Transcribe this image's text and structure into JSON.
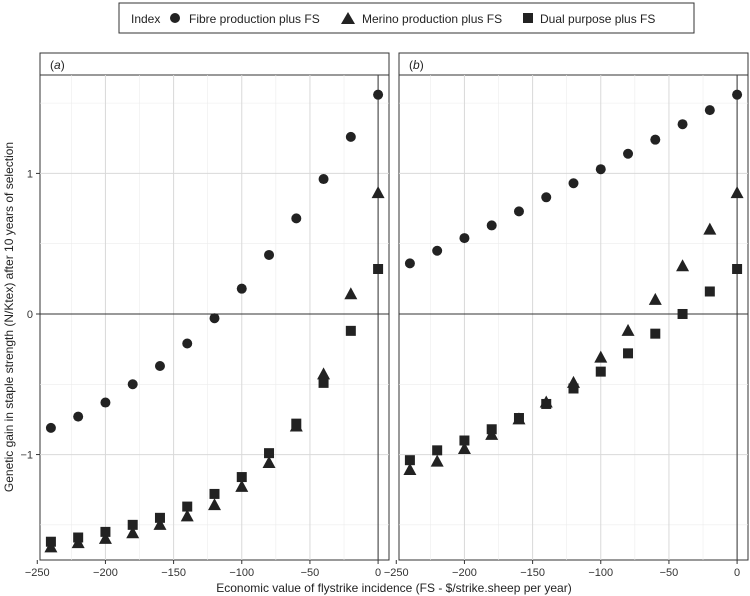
{
  "chart_data": {
    "type": "scatter",
    "legend": {
      "title": "Index",
      "position": "top",
      "entries": [
        {
          "name": "Fibre production plus FS",
          "shape": "circle"
        },
        {
          "name": "Merino production plus FS",
          "shape": "triangle"
        },
        {
          "name": "Dual purpose plus FS",
          "shape": "square"
        }
      ]
    },
    "xlabel": "Economic value of flystrike incidence (FS - $/strike.sheep per year)",
    "ylabel": "Genetic gain in staple strength (N/Ktex) after 10 years of selection",
    "xlim": [
      -248,
      8
    ],
    "ylim": [
      -1.75,
      1.7
    ],
    "xticks": [
      -250,
      -200,
      -150,
      -100,
      -50,
      0
    ],
    "yticks": [
      -1,
      0,
      1
    ],
    "grid": true,
    "reference_lines": {
      "x": 0,
      "y": 0
    },
    "marker_color": "#222222",
    "panels": [
      {
        "label_prefix": "(",
        "label_letter": "a",
        "label_suffix": ")",
        "x": [
          -240,
          -220,
          -200,
          -180,
          -160,
          -140,
          -120,
          -100,
          -80,
          -60,
          -40,
          -20,
          0
        ],
        "series": [
          {
            "name": "Fibre production plus FS",
            "shape": "circle",
            "values": [
              -0.81,
              -0.73,
              -0.63,
              -0.5,
              -0.37,
              -0.21,
              -0.03,
              0.18,
              0.42,
              0.68,
              0.96,
              1.26,
              1.56
            ]
          },
          {
            "name": "Merino production plus FS",
            "shape": "triangle",
            "values": [
              -1.66,
              -1.63,
              -1.6,
              -1.56,
              -1.5,
              -1.44,
              -1.36,
              -1.23,
              -1.06,
              -0.8,
              -0.43,
              0.14,
              0.86
            ]
          },
          {
            "name": "Dual purpose plus FS",
            "shape": "square",
            "values": [
              -1.62,
              -1.59,
              -1.55,
              -1.5,
              -1.45,
              -1.37,
              -1.28,
              -1.16,
              -0.99,
              -0.78,
              -0.49,
              -0.12,
              0.32
            ]
          }
        ]
      },
      {
        "label_prefix": "(",
        "label_letter": "b",
        "label_suffix": ")",
        "x": [
          -240,
          -220,
          -200,
          -180,
          -160,
          -140,
          -120,
          -100,
          -80,
          -60,
          -40,
          -20,
          0
        ],
        "series": [
          {
            "name": "Fibre production plus FS",
            "shape": "circle",
            "values": [
              0.36,
              0.45,
              0.54,
              0.63,
              0.73,
              0.83,
              0.93,
              1.03,
              1.14,
              1.24,
              1.35,
              1.45,
              1.56
            ]
          },
          {
            "name": "Merino production plus FS",
            "shape": "triangle",
            "values": [
              -1.11,
              -1.05,
              -0.96,
              -0.86,
              -0.75,
              -0.63,
              -0.49,
              -0.31,
              -0.12,
              0.1,
              0.34,
              0.6,
              0.86
            ]
          },
          {
            "name": "Dual purpose plus FS",
            "shape": "square",
            "values": [
              -1.04,
              -0.97,
              -0.9,
              -0.82,
              -0.74,
              -0.64,
              -0.53,
              -0.41,
              -0.28,
              -0.14,
              0.0,
              0.16,
              0.32
            ]
          }
        ]
      }
    ]
  }
}
